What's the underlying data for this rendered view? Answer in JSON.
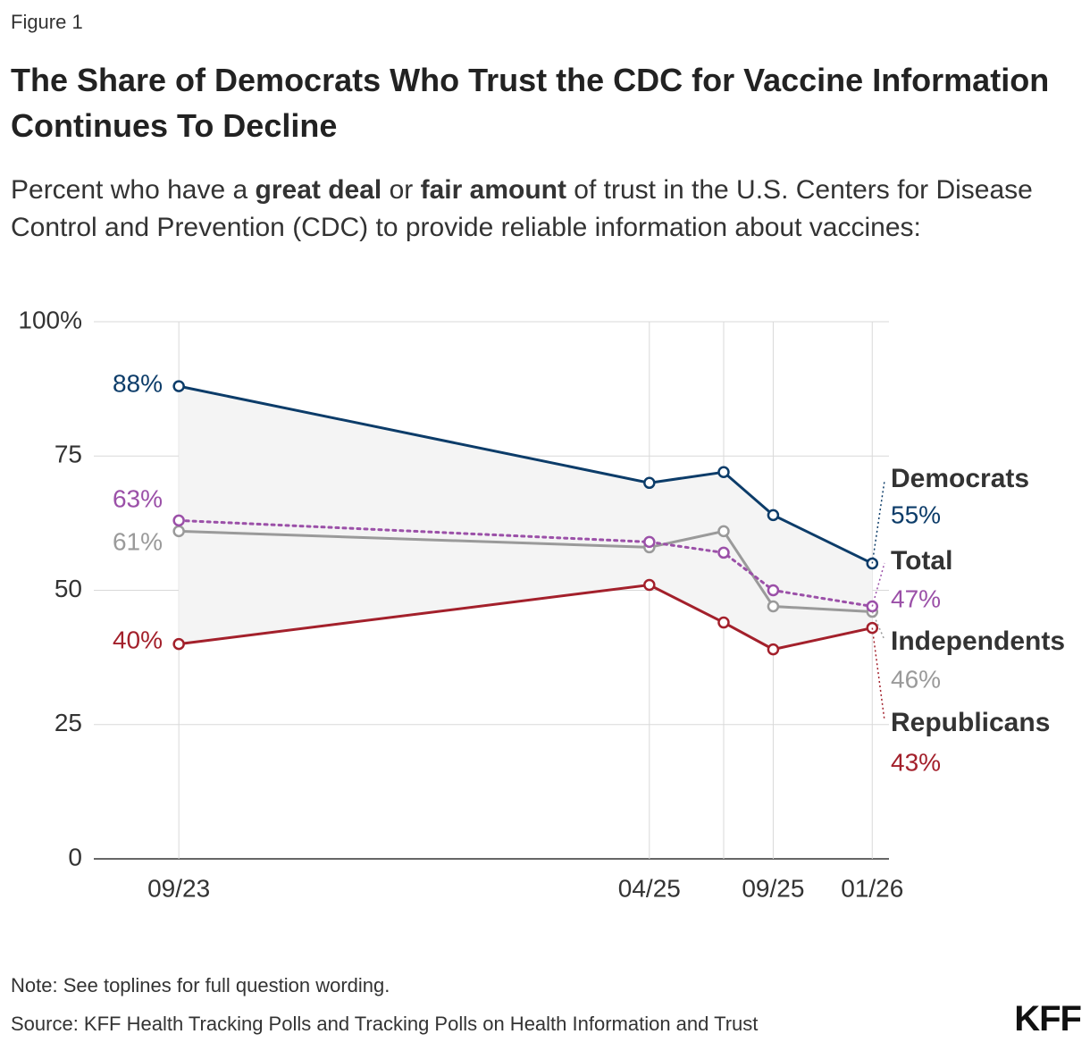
{
  "figure_label": "Figure 1",
  "chart_data": {
    "type": "line",
    "title": "The Share of Democrats Who Trust the CDC for Vaccine Information Continues To Decline",
    "subtitle": [
      "Percent who have a ",
      "great deal",
      " or ",
      "fair amount",
      " of trust in the U.S. Centers for Disease Control and Prevention (CDC) to provide reliable information about vaccines:"
    ],
    "x": [
      "2023-09",
      "2025-04",
      "2025-07",
      "2025-09",
      "2026-01"
    ],
    "xlim": [
      "2023-06",
      "2026-02"
    ],
    "xticks": [
      {
        "value": "2023-09",
        "label": "09/23"
      },
      {
        "value": "2025-04",
        "label": "04/25"
      },
      {
        "value": "2025-09",
        "label": "09/25"
      },
      {
        "value": "2026-01",
        "label": "01/26"
      }
    ],
    "ylim": [
      0,
      100
    ],
    "yticks": [
      {
        "value": 100,
        "label": "100%"
      },
      75,
      50,
      25,
      0
    ],
    "grid": true,
    "band": true,
    "series": [
      {
        "name": "Democrats",
        "color": "#0c3c69",
        "dash": false,
        "values": [
          88,
          70,
          72,
          64,
          55
        ],
        "value_labels": [
          "88%",
          null,
          null,
          null,
          "55%"
        ]
      },
      {
        "name": "Total",
        "color": "#9b50a8",
        "dash": true,
        "values": [
          63,
          59,
          57,
          50,
          47
        ],
        "value_labels": [
          "63%",
          null,
          null,
          null,
          "47%"
        ]
      },
      {
        "name": "Independents",
        "color": "#9a9a9a",
        "dash": false,
        "values": [
          61,
          58,
          61,
          47,
          46
        ],
        "value_labels": [
          "61%",
          null,
          null,
          null,
          "46%"
        ]
      },
      {
        "name": "Republicans",
        "color": "#a3202b",
        "dash": false,
        "values": [
          40,
          51,
          44,
          39,
          43
        ],
        "value_labels": [
          "40%",
          null,
          null,
          null,
          "43%"
        ]
      }
    ],
    "note": "Note: See toplines for full question wording.",
    "source": "Source: KFF Health Tracking Polls and Tracking Polls on Health Information and Trust",
    "logo": "KFF"
  }
}
